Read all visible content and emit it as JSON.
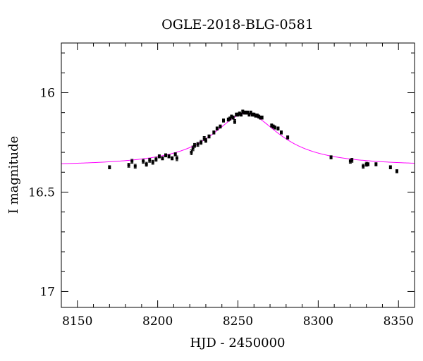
{
  "chart_data": {
    "type": "scatter",
    "title": "OGLE-2018-BLG-0581",
    "xlabel": "HJD - 2450000",
    "ylabel": "I magnitude",
    "xlim": [
      8140,
      8360
    ],
    "ylim": [
      15.75,
      17.08
    ],
    "y_inverted": true,
    "x_ticks": [
      8150,
      8200,
      8250,
      8300,
      8350
    ],
    "y_ticks": [
      16,
      16.5,
      17
    ],
    "x_tick_labels": [
      "8150",
      "8200",
      "8250",
      "8300",
      "8350"
    ],
    "y_tick_labels": [
      "16",
      "16.5",
      "17"
    ],
    "grid": false,
    "colors": {
      "points": "#000000",
      "model": "#ff00ff"
    },
    "model": {
      "baseline": 16.37,
      "peak": 16.105,
      "t0": 8255,
      "width": 26
    },
    "series": [
      {
        "type": "scatter",
        "x": [
          8170,
          8182,
          8184,
          8186,
          8191,
          8193,
          8195,
          8197,
          8199,
          8201,
          8203,
          8205,
          8207,
          8209,
          8211,
          8212,
          8221,
          8222,
          8223,
          8225,
          8227,
          8229,
          8230,
          8232,
          8235,
          8237,
          8239,
          8241,
          8244,
          8245,
          8246,
          8247,
          8248,
          8249,
          8250,
          8251,
          8252,
          8253,
          8254,
          8255,
          8256,
          8257,
          8258,
          8259,
          8260,
          8261,
          8262,
          8263,
          8264,
          8265,
          8271,
          8272,
          8273,
          8275,
          8277,
          8281,
          8308,
          8320,
          8321,
          8328,
          8330,
          8331,
          8336,
          8345,
          8349
        ],
        "y": [
          16.375,
          16.365,
          16.345,
          16.37,
          16.345,
          16.36,
          16.34,
          16.35,
          16.335,
          16.32,
          16.33,
          16.315,
          16.32,
          16.33,
          16.31,
          16.33,
          16.3,
          16.28,
          16.265,
          16.26,
          16.25,
          16.23,
          16.24,
          16.22,
          16.2,
          16.18,
          16.17,
          16.14,
          16.135,
          16.13,
          16.12,
          16.125,
          16.145,
          16.11,
          16.11,
          16.105,
          16.11,
          16.095,
          16.1,
          16.1,
          16.1,
          16.11,
          16.1,
          16.11,
          16.11,
          16.115,
          16.115,
          16.12,
          16.125,
          16.125,
          16.165,
          16.17,
          16.175,
          16.18,
          16.2,
          16.225,
          16.325,
          16.345,
          16.34,
          16.37,
          16.36,
          16.36,
          16.36,
          16.375,
          16.395
        ],
        "yerr": [
          0.008,
          0.01,
          0.01,
          0.01,
          0.01,
          0.01,
          0.01,
          0.01,
          0.01,
          0.008,
          0.008,
          0.008,
          0.008,
          0.008,
          0.008,
          0.012,
          0.012,
          0.012,
          0.01,
          0.01,
          0.01,
          0.01,
          0.01,
          0.008,
          0.008,
          0.008,
          0.008,
          0.008,
          0.008,
          0.008,
          0.008,
          0.008,
          0.01,
          0.008,
          0.008,
          0.008,
          0.008,
          0.008,
          0.008,
          0.008,
          0.008,
          0.008,
          0.008,
          0.008,
          0.008,
          0.008,
          0.008,
          0.008,
          0.008,
          0.008,
          0.008,
          0.008,
          0.008,
          0.008,
          0.008,
          0.008,
          0.008,
          0.01,
          0.01,
          0.01,
          0.01,
          0.008,
          0.008,
          0.008,
          0.008
        ]
      }
    ]
  }
}
